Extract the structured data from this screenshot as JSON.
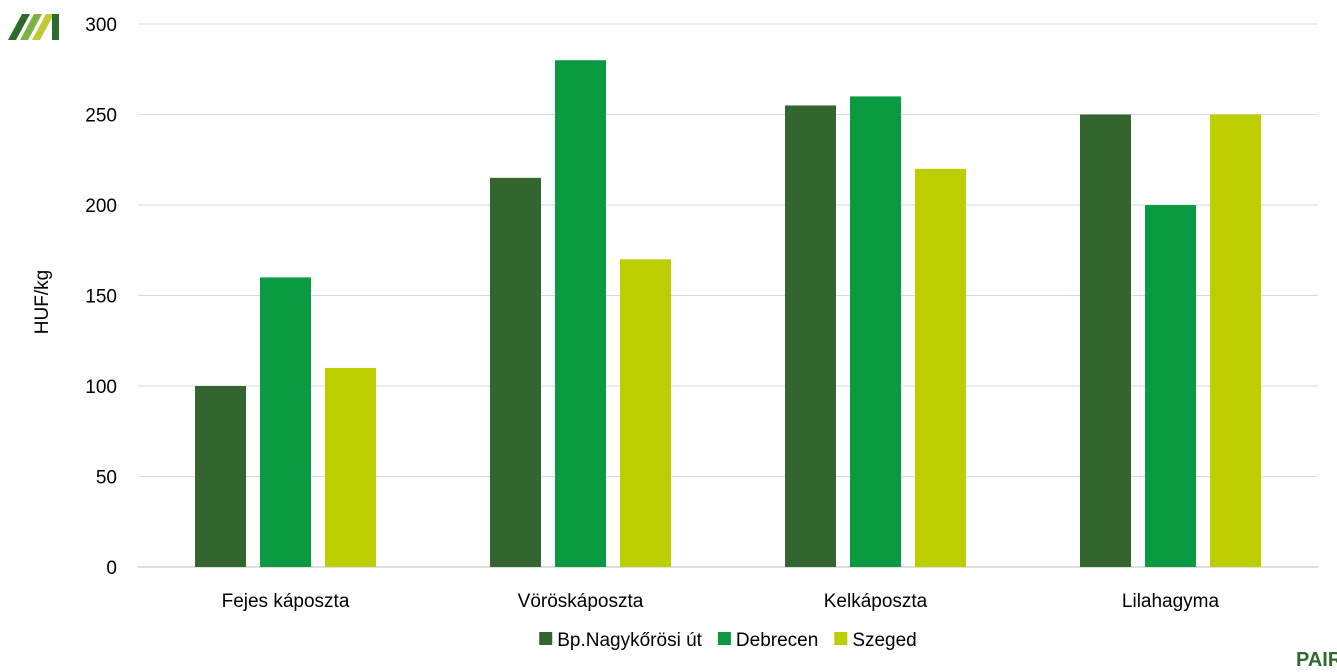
{
  "logos": {
    "top_left": "AKI",
    "bottom_right": "PÁIR"
  },
  "colors": {
    "series": [
      "#33652e",
      "#0a9a42",
      "#bcce00"
    ],
    "grid": "#d9d9d9"
  },
  "chart_data": {
    "type": "bar",
    "title": "",
    "xlabel": "",
    "ylabel": "HUF/kg",
    "ylim": [
      0,
      300
    ],
    "yticks": [
      0,
      50,
      100,
      150,
      200,
      250,
      300
    ],
    "grid": true,
    "legend_position": "bottom",
    "categories": [
      "Fejes káposzta",
      "Vöröskáposzta",
      "Kelkáposzta",
      "Lilahagyma"
    ],
    "series": [
      {
        "name": "Bp.Nagykőrösi út",
        "values": [
          100,
          215,
          255,
          250
        ]
      },
      {
        "name": "Debrecen",
        "values": [
          160,
          280,
          260,
          200
        ]
      },
      {
        "name": "Szeged",
        "values": [
          110,
          170,
          220,
          250
        ]
      }
    ]
  }
}
